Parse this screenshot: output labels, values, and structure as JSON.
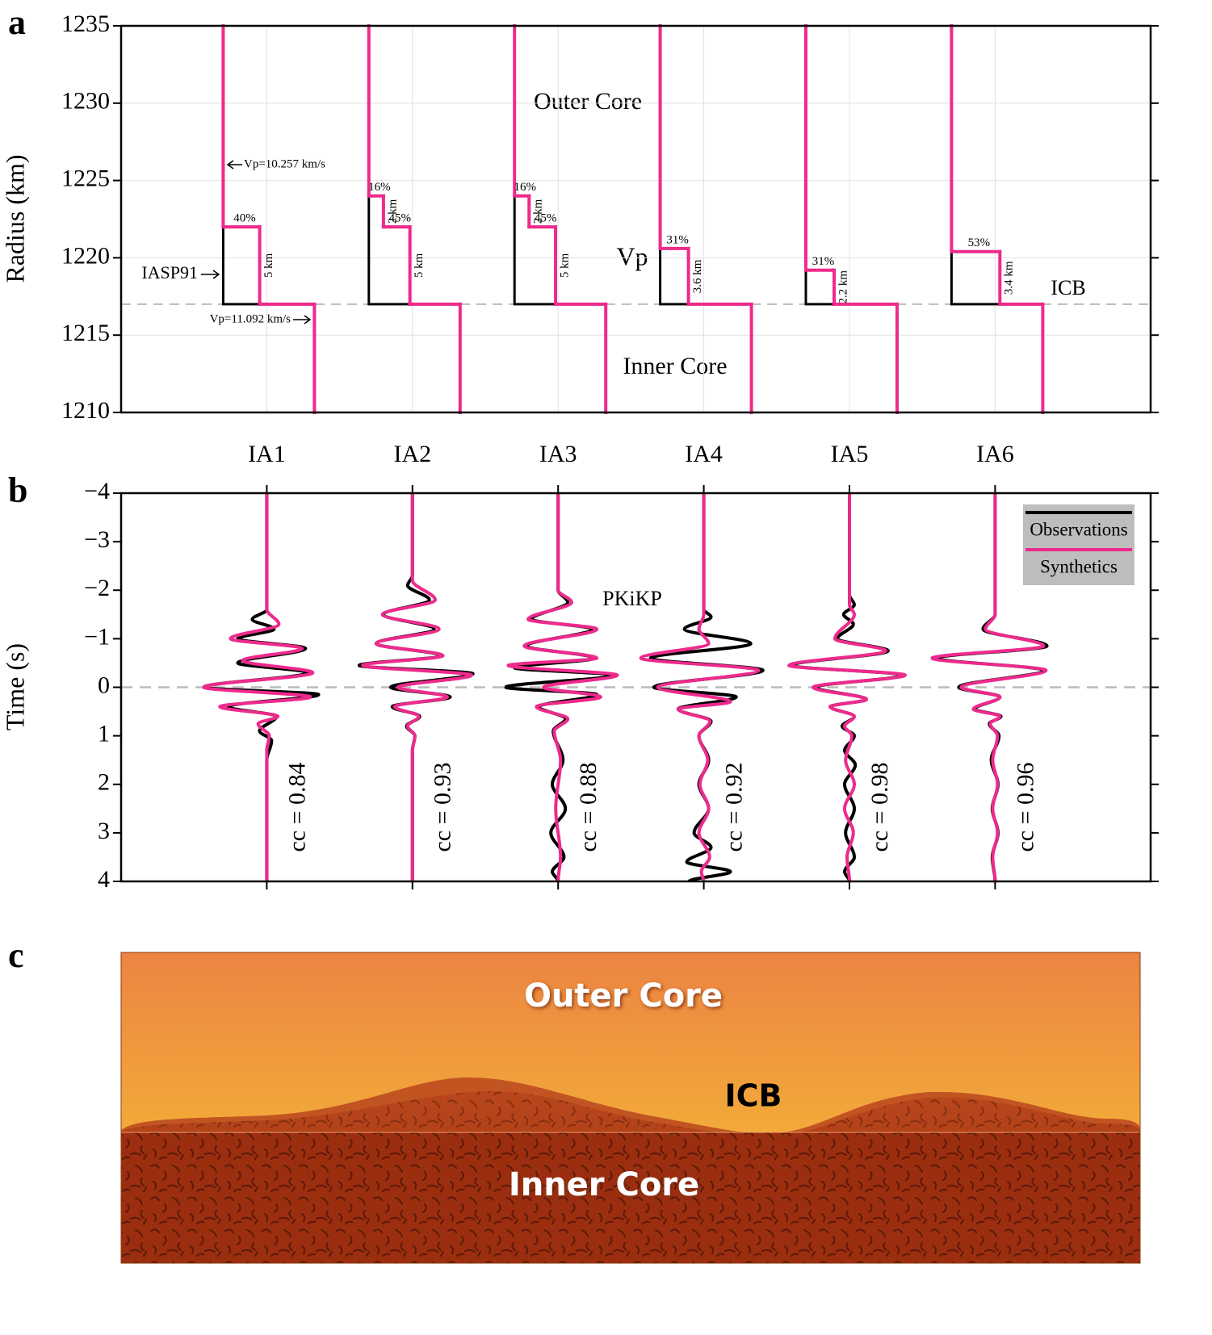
{
  "chart_data": [
    {
      "type": "step-profile",
      "panel_label": "a",
      "ylabel": "Radius (km)",
      "ylim": [
        1210,
        1235
      ],
      "yticks": [
        1210,
        1215,
        1220,
        1225,
        1230,
        1235
      ],
      "grid": true,
      "categories": [
        "IA1",
        "IA2",
        "IA3",
        "IA4",
        "IA5",
        "IA6"
      ],
      "icb_radius": 1217,
      "icb_label": "ICB",
      "reference_label": "IASP91",
      "reference_color": "#000000",
      "model_color": "#ee2a8c",
      "vp_outer": 10.257,
      "vp_outer_label": "Vp=10.257 km/s",
      "vp_inner": 11.092,
      "vp_inner_label": "Vp=11.092 km/s",
      "annotations": [
        "Outer Core",
        "Inner Core",
        "Vp"
      ],
      "models": [
        {
          "layers": [
            {
              "percent": 40,
              "percent_label": "40%",
              "thickness": 5,
              "thickness_label": "5 km"
            }
          ]
        },
        {
          "layers": [
            {
              "percent": 45,
              "percent_label": "45%",
              "thickness": 5,
              "thickness_label": "5 km"
            },
            {
              "percent": 16,
              "percent_label": "16%",
              "thickness": 2,
              "thickness_label": "2 km"
            }
          ]
        },
        {
          "layers": [
            {
              "percent": 45,
              "percent_label": "45%",
              "thickness": 5,
              "thickness_label": "5 km"
            },
            {
              "percent": 16,
              "percent_label": "16%",
              "thickness": 2,
              "thickness_label": "2 km"
            }
          ]
        },
        {
          "layers": [
            {
              "percent": 31,
              "percent_label": "31%",
              "thickness": 3.6,
              "thickness_label": "3.6 km"
            }
          ]
        },
        {
          "layers": [
            {
              "percent": 31,
              "percent_label": "31%",
              "thickness": 2.2,
              "thickness_label": "2.2 km"
            }
          ]
        },
        {
          "layers": [
            {
              "percent": 53,
              "percent_label": "53%",
              "thickness": 3.4,
              "thickness_label": "3.4 km"
            }
          ]
        }
      ]
    },
    {
      "type": "waveform",
      "panel_label": "b",
      "ylabel": "Time (s)",
      "ylim": [
        -4,
        4
      ],
      "y_inverted": true,
      "yticks": [
        {
          "value": -4,
          "label": "−4"
        },
        {
          "value": -3,
          "label": "−3"
        },
        {
          "value": -2,
          "label": "−2"
        },
        {
          "value": -1,
          "label": "−1"
        },
        0,
        1,
        2,
        3,
        4
      ],
      "annotation": "PKiKP",
      "legend": "upper right",
      "cc": [
        0.84,
        0.93,
        0.88,
        0.92,
        0.98,
        0.96
      ],
      "cc_labels": [
        "cc = 0.84",
        "cc = 0.93",
        "cc = 0.88",
        "cc = 0.92",
        "cc = 0.98",
        "cc = 0.96"
      ],
      "series": [
        {
          "name": "Observations",
          "color": "#000000",
          "traces": [
            {
              "x": [
                -4,
                -1.6,
                -1.4,
                -1.2,
                -1.0,
                -0.8,
                -0.5,
                -0.3,
                0,
                0.15,
                0.4,
                0.6,
                0.9,
                1.1,
                1.5,
                4
              ],
              "values": [
                0,
                0,
                -0.3,
                0.15,
                -0.6,
                0.8,
                -0.6,
                0.85,
                -1.3,
                1.07,
                -0.8,
                0.2,
                -0.15,
                0.1,
                0,
                0
              ]
            },
            {
              "x": [
                -4,
                -2.3,
                -2.1,
                -1.8,
                -1.5,
                -1.2,
                -0.9,
                -0.65,
                -0.45,
                -0.28,
                0,
                0.2,
                0.4,
                0.6,
                0.8,
                1.0,
                1.3,
                4
              ],
              "values": [
                0,
                0,
                -0.1,
                0.35,
                -0.6,
                0.45,
                -0.75,
                0.6,
                -1.1,
                1.25,
                -0.45,
                0.78,
                -0.42,
                0.15,
                -0.12,
                0.05,
                0,
                0
              ]
            },
            {
              "x": [
                -4,
                -2.0,
                -1.75,
                -1.4,
                -1.2,
                -0.85,
                -0.6,
                -0.4,
                -0.25,
                0,
                0.15,
                0.4,
                0.65,
                0.9,
                1.5,
                2.0,
                2.5,
                3.0,
                3.5,
                3.8,
                4
              ],
              "values": [
                0,
                0,
                0.2,
                -0.55,
                0.7,
                -0.65,
                0.75,
                -0.9,
                1.15,
                -1.08,
                0.8,
                -0.4,
                0.15,
                -0.1,
                0.1,
                -0.12,
                0.15,
                -0.15,
                0.12,
                -0.12,
                0
              ]
            },
            {
              "x": [
                -4,
                -1.6,
                -1.45,
                -1.2,
                -0.9,
                -0.6,
                -0.35,
                0,
                0.2,
                0.45,
                0.7,
                1.0,
                1.5,
                2.0,
                2.5,
                3.0,
                3.3,
                3.6,
                3.8,
                4
              ],
              "values": [
                0,
                0,
                0.15,
                -0.4,
                0.97,
                -1.1,
                1.22,
                -1.03,
                0.67,
                -0.53,
                0.15,
                -0.1,
                0.1,
                -0.1,
                0.1,
                -0.2,
                0.15,
                -0.35,
                0.55,
                -0.3
              ]
            },
            {
              "x": [
                -4,
                -1.9,
                -1.7,
                -1.5,
                -1.3,
                -1.0,
                -0.75,
                -0.45,
                -0.25,
                0,
                0.25,
                0.4,
                0.6,
                0.8,
                1.0,
                1.3,
                1.6,
                2.0,
                2.5,
                3.0,
                3.5,
                3.8,
                4
              ],
              "values": [
                0,
                0,
                0.1,
                -0.12,
                0.08,
                -0.25,
                0.8,
                -1.2,
                1.1,
                -0.7,
                0.35,
                -0.4,
                0.1,
                -0.15,
                0.1,
                -0.1,
                0.12,
                -0.1,
                0.1,
                -0.08,
                0.1,
                -0.1,
                0
              ]
            },
            {
              "x": [
                -4,
                -1.5,
                -1.2,
                -0.85,
                -0.6,
                -0.35,
                0,
                0.2,
                0.45,
                0.6,
                0.75,
                1.0,
                1.5,
                2.0,
                2.5,
                3.0,
                3.5,
                4
              ],
              "values": [
                0,
                0,
                -0.25,
                1.07,
                -1.2,
                1.0,
                -0.75,
                0.1,
                -0.42,
                0.12,
                -0.12,
                0.08,
                -0.08,
                0.06,
                -0.06,
                0.06,
                -0.06,
                0
              ]
            }
          ]
        },
        {
          "name": "Synthetics",
          "color": "#ee2a8c",
          "traces": [
            {
              "x": [
                -4,
                -1.6,
                -1.3,
                -1.0,
                -0.8,
                -0.55,
                -0.3,
                0,
                0.2,
                0.4,
                0.6,
                0.75,
                1.0,
                1.3,
                4
              ],
              "values": [
                0,
                0,
                0.25,
                -0.75,
                0.73,
                -0.5,
                0.95,
                -1.3,
                0.9,
                -0.97,
                0.23,
                -0.18,
                0.05,
                0,
                0
              ]
            },
            {
              "x": [
                -4,
                -2.2,
                -1.8,
                -1.5,
                -1.2,
                -0.9,
                -0.65,
                -0.45,
                -0.25,
                0,
                0.2,
                0.4,
                0.6,
                0.8,
                1.0,
                1.3,
                4
              ],
              "values": [
                0,
                0,
                0.47,
                -0.62,
                0.55,
                -0.75,
                0.63,
                -1.03,
                1.22,
                -0.3,
                0.72,
                -0.37,
                0.13,
                -0.1,
                0.05,
                0,
                0
              ]
            },
            {
              "x": [
                -4,
                -2.0,
                -1.75,
                -1.4,
                -1.2,
                -0.85,
                -0.6,
                -0.45,
                -0.25,
                0,
                0.2,
                0.4,
                0.65,
                0.9,
                1.5,
                2.5,
                3.5,
                4
              ],
              "values": [
                0,
                0,
                0.28,
                -0.62,
                0.8,
                -0.7,
                0.8,
                -1.03,
                1.22,
                -0.3,
                0.88,
                -0.45,
                0.2,
                -0.08,
                0.05,
                -0.05,
                0.05,
                0
              ]
            },
            {
              "x": [
                -4,
                -1.5,
                -1.2,
                -0.9,
                -0.6,
                -0.35,
                0,
                0.3,
                0.45,
                0.7,
                1.0,
                1.5,
                2.0,
                2.5,
                3.0,
                3.5,
                3.8,
                4
              ],
              "values": [
                0,
                0,
                -0.1,
                0.1,
                -1.3,
                1.13,
                -0.95,
                0.55,
                -0.53,
                0.13,
                -0.1,
                0.08,
                -0.08,
                0.1,
                -0.1,
                0.12,
                -0.05,
                0
              ]
            },
            {
              "x": [
                -4,
                -1.7,
                -1.5,
                -1.0,
                -0.75,
                -0.45,
                -0.25,
                0,
                0.25,
                0.4,
                0.6,
                0.8,
                1.0,
                1.5,
                2.0,
                2.5,
                3.0,
                3.5,
                4
              ],
              "values": [
                0,
                0,
                0.1,
                -0.3,
                0.75,
                -1.25,
                1.15,
                -0.75,
                0.35,
                -0.4,
                0.1,
                -0.1,
                0.05,
                -0.08,
                0.1,
                -0.1,
                0.08,
                -0.05,
                0
              ]
            },
            {
              "x": [
                -4,
                -1.5,
                -1.2,
                -0.85,
                -0.6,
                -0.35,
                0,
                0.2,
                0.45,
                0.6,
                0.75,
                1.0,
                1.5,
                2.0,
                2.5,
                3.0,
                3.5,
                4
              ],
              "values": [
                0,
                0,
                -0.2,
                1.0,
                -1.3,
                1.05,
                -0.7,
                0.1,
                -0.45,
                0.1,
                -0.1,
                0.05,
                -0.05,
                0.05,
                -0.05,
                0.05,
                -0.05,
                0
              ]
            }
          ]
        }
      ]
    },
    {
      "type": "illustration",
      "panel_label": "c",
      "labels": [
        "Outer Core",
        "ICB",
        "Inner Core"
      ]
    }
  ]
}
